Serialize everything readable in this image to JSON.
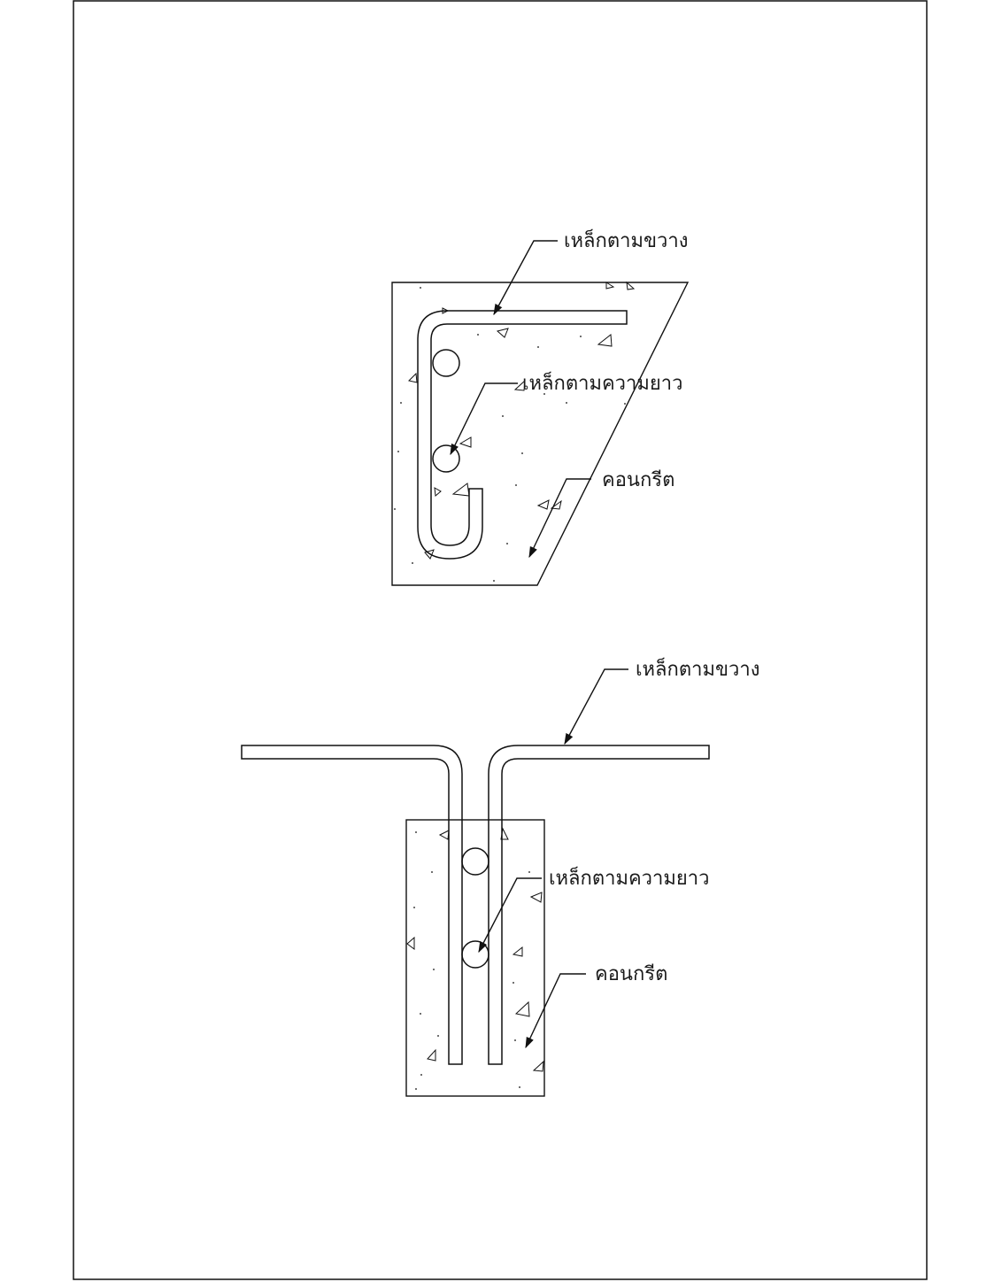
{
  "detail_top": {
    "transverse_label": "เหล็กตามขวาง",
    "longitudinal_label": "เหล็กตามความยาว",
    "concrete_label": "คอนกรีต"
  },
  "detail_bottom": {
    "transverse_label": "เหล็กตามขวาง",
    "longitudinal_label": "เหล็กตามความยาว",
    "concrete_label": "คอนกรีต"
  }
}
